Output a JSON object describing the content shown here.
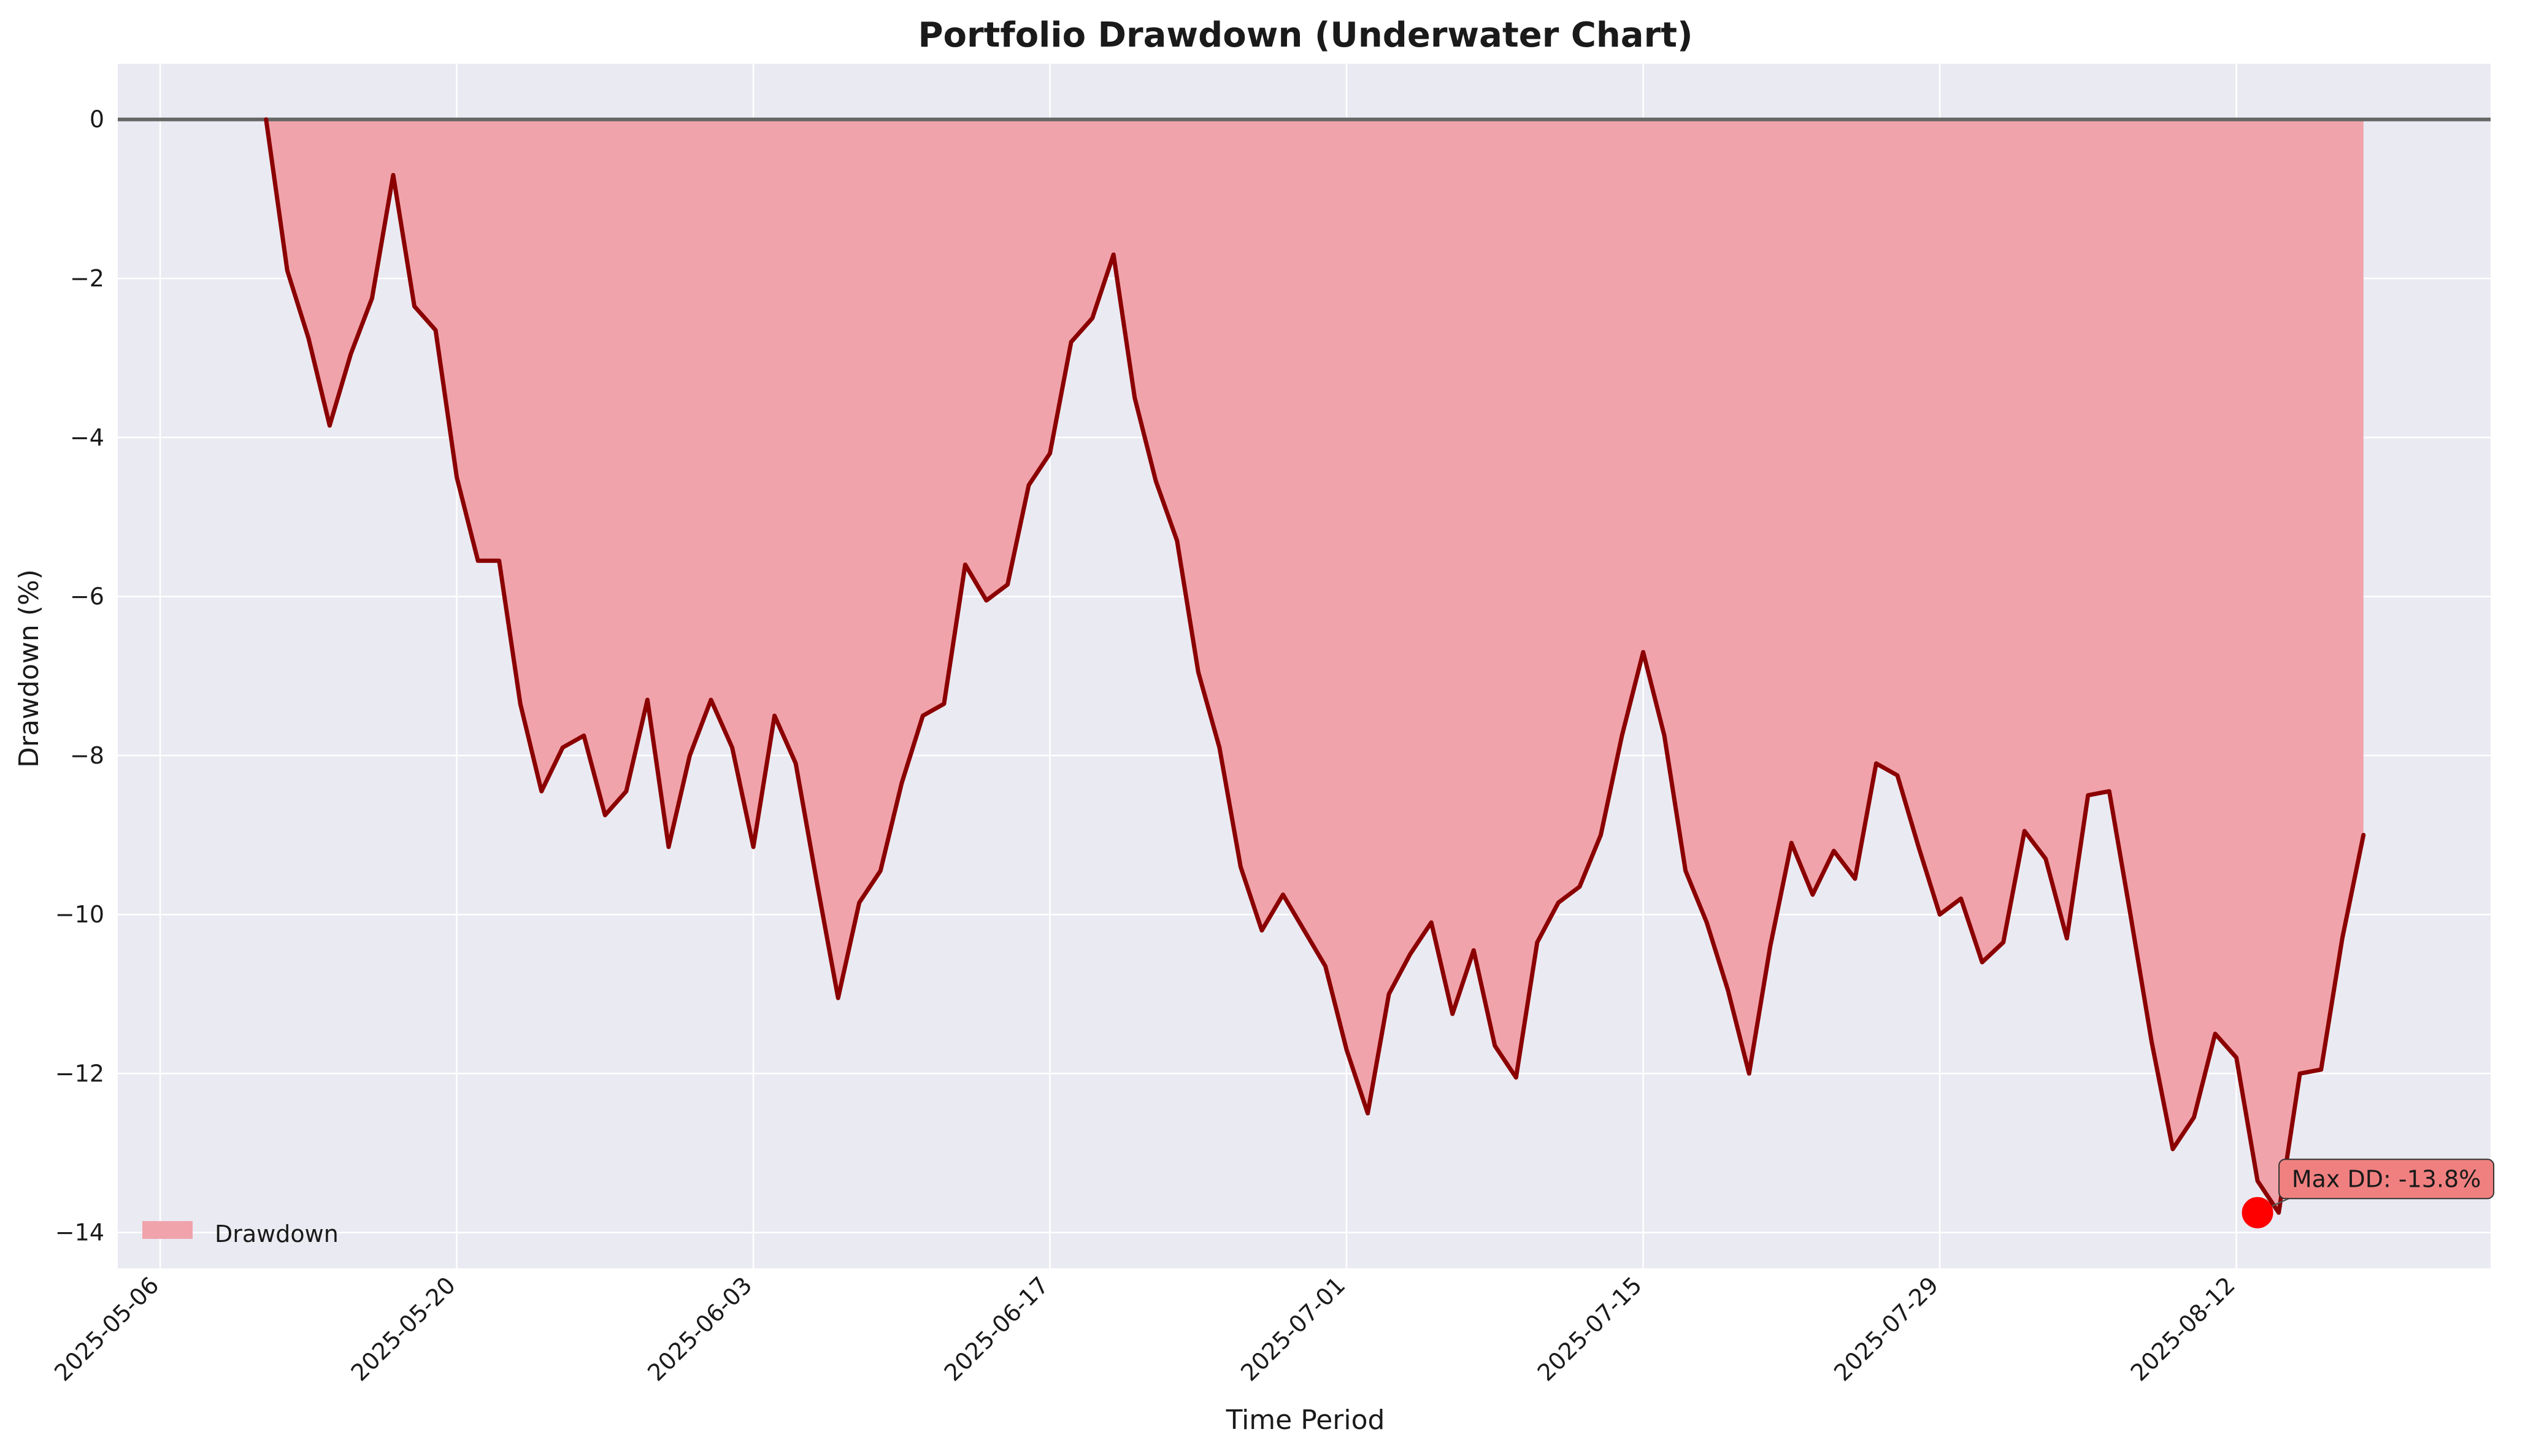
{
  "chart_data": {
    "type": "area",
    "title": "Portfolio Drawdown (Underwater Chart)",
    "xlabel": "Time Period",
    "ylabel": "Drawdown (%)",
    "xlim": [
      "2025-05-04",
      "2025-08-24"
    ],
    "ylim": [
      -14.45,
      0.7
    ],
    "x_ticks": [
      "2025-05-06",
      "2025-05-20",
      "2025-06-03",
      "2025-06-17",
      "2025-07-01",
      "2025-07-15",
      "2025-07-29",
      "2025-08-12"
    ],
    "y_ticks": [
      0,
      -2,
      -4,
      -6,
      -8,
      -10,
      -12,
      -14
    ],
    "y_tick_labels": [
      "0",
      "−2",
      "−4",
      "−6",
      "−8",
      "−10",
      "−12",
      "−14"
    ],
    "grid": true,
    "legend_position": "lower-left",
    "colors": {
      "fill": "#f0a3aa",
      "line": "#8b0000",
      "zero_line": "#666666",
      "marker": "#ff0000",
      "plot_bg": "#eaeaf2",
      "annotation_bg": "#f08080"
    },
    "series": [
      {
        "name": "Drawdown",
        "x": [
          "2025-05-11",
          "2025-05-12",
          "2025-05-13",
          "2025-05-14",
          "2025-05-15",
          "2025-05-16",
          "2025-05-17",
          "2025-05-18",
          "2025-05-19",
          "2025-05-20",
          "2025-05-21",
          "2025-05-22",
          "2025-05-23",
          "2025-05-24",
          "2025-05-25",
          "2025-05-26",
          "2025-05-27",
          "2025-05-28",
          "2025-05-29",
          "2025-05-30",
          "2025-05-31",
          "2025-06-01",
          "2025-06-02",
          "2025-06-03",
          "2025-06-04",
          "2025-06-05",
          "2025-06-06",
          "2025-06-07",
          "2025-06-08",
          "2025-06-09",
          "2025-06-10",
          "2025-06-11",
          "2025-06-12",
          "2025-06-13",
          "2025-06-14",
          "2025-06-15",
          "2025-06-16",
          "2025-06-17",
          "2025-06-18",
          "2025-06-19",
          "2025-06-20",
          "2025-06-21",
          "2025-06-22",
          "2025-06-23",
          "2025-06-24",
          "2025-06-25",
          "2025-06-26",
          "2025-06-27",
          "2025-06-28",
          "2025-06-29",
          "2025-06-30",
          "2025-07-01",
          "2025-07-02",
          "2025-07-03",
          "2025-07-04",
          "2025-07-05",
          "2025-07-06",
          "2025-07-07",
          "2025-07-08",
          "2025-07-09",
          "2025-07-10",
          "2025-07-11",
          "2025-07-12",
          "2025-07-13",
          "2025-07-14",
          "2025-07-15",
          "2025-07-16",
          "2025-07-17",
          "2025-07-18",
          "2025-07-19",
          "2025-07-20",
          "2025-07-21",
          "2025-07-22",
          "2025-07-23",
          "2025-07-24",
          "2025-07-25",
          "2025-07-26",
          "2025-07-27",
          "2025-07-28",
          "2025-07-29",
          "2025-07-30",
          "2025-07-31",
          "2025-08-01",
          "2025-08-02",
          "2025-08-03",
          "2025-08-04",
          "2025-08-05",
          "2025-08-06",
          "2025-08-07",
          "2025-08-08",
          "2025-08-09",
          "2025-08-10",
          "2025-08-11",
          "2025-08-12",
          "2025-08-13",
          "2025-08-14",
          "2025-08-15",
          "2025-08-16",
          "2025-08-17",
          "2025-08-18"
        ],
        "values": [
          0.0,
          -1.9,
          -2.75,
          -3.85,
          -2.95,
          -2.25,
          -0.7,
          -2.35,
          -2.65,
          -4.5,
          -5.55,
          -5.55,
          -7.35,
          -8.45,
          -7.9,
          -7.75,
          -8.75,
          -8.45,
          -7.3,
          -9.15,
          -8.0,
          -7.3,
          -7.9,
          -9.15,
          -7.5,
          -8.1,
          -9.6,
          -11.05,
          -9.85,
          -9.45,
          -8.35,
          -7.5,
          -7.35,
          -5.6,
          -6.05,
          -5.85,
          -4.6,
          -4.2,
          -2.8,
          -2.5,
          -1.7,
          -3.5,
          -4.55,
          -5.3,
          -6.95,
          -7.9,
          -9.4,
          -10.2,
          -9.75,
          -10.2,
          -10.65,
          -11.7,
          -12.5,
          -11.0,
          -10.5,
          -10.1,
          -11.25,
          -10.45,
          -11.65,
          -12.05,
          -10.35,
          -9.85,
          -9.65,
          -9.0,
          -7.75,
          -6.7,
          -7.75,
          -9.45,
          -10.1,
          -10.95,
          -12.0,
          -10.4,
          -9.1,
          -9.75,
          -9.2,
          -9.55,
          -8.1,
          -8.25,
          -9.15,
          -10.0,
          -9.8,
          -10.6,
          -10.35,
          -8.95,
          -9.3,
          -10.3,
          -8.5,
          -8.45,
          -10.0,
          -11.6,
          -12.95,
          -12.55,
          -11.5,
          -11.8,
          -13.35,
          -13.75,
          -12.0,
          -11.95,
          -10.3,
          -9.0
        ]
      }
    ],
    "annotations": [
      {
        "text": "Max DD: -13.8%",
        "x": "2025-08-13",
        "y": -13.75
      }
    ]
  }
}
